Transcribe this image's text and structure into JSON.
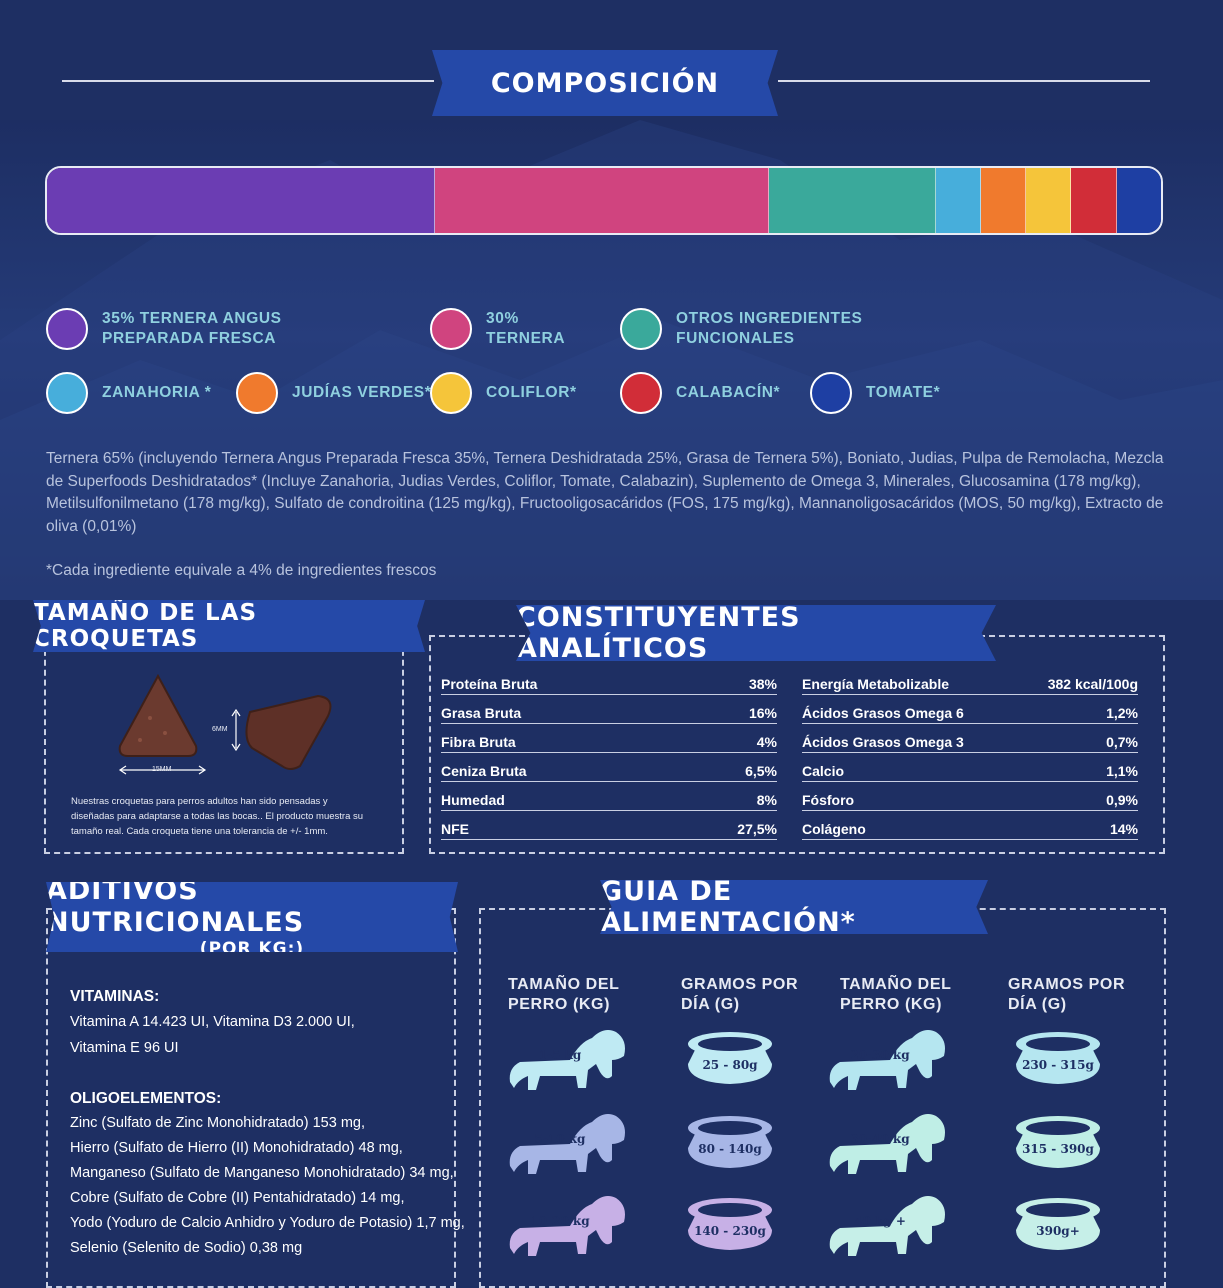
{
  "composicion": {
    "title": "COMPOSICIÓN",
    "segments": [
      {
        "color": "#6b3db3",
        "share": 35
      },
      {
        "color": "#d0447f",
        "share": 30
      },
      {
        "color": "#3aa99b",
        "share": 15
      },
      {
        "color": "#47aedb",
        "share": 4
      },
      {
        "color": "#f07a2d",
        "share": 4
      },
      {
        "color": "#f5c53a",
        "share": 4
      },
      {
        "color": "#d12d38",
        "share": 4
      },
      {
        "color": "#1e3fa3",
        "share": 4
      }
    ],
    "legend": [
      {
        "label": "35% TERNERA ANGUS\nPREPARADA FRESCA",
        "color": "#6b3db3"
      },
      {
        "label": "30%\nTERNERA",
        "color": "#d0447f"
      },
      {
        "label": "OTROS INGREDIENTES\nFUNCIONALES",
        "color": "#3aa99b"
      },
      {
        "label": "ZANAHORIA *",
        "color": "#47aedb"
      },
      {
        "label": "JUDÍAS VERDES*",
        "color": "#f07a2d"
      },
      {
        "label": "COLIFLOR*",
        "color": "#f5c53a"
      },
      {
        "label": "CALABACÍN*",
        "color": "#d12d38"
      },
      {
        "label": "TOMATE*",
        "color": "#1e3fa3"
      }
    ],
    "ingredients": "Ternera 65% (incluyendo Ternera Angus Preparada Fresca 35%, Ternera Deshidratada 25%, Grasa de Ternera 5%), Boniato, Judias, Pulpa de Remolacha, Mezcla de Superfoods Deshidratados* (Incluye Zanahoria, Judias Verdes, Coliflor, Tomate, Calabazin), Suplemento de Omega 3, Minerales, Glucosamina (178 mg/kg), Metilsulfonilmetano (178 mg/kg), Sulfato de condroitina (125 mg/kg), Fructooligosacáridos (FOS, 175 mg/kg), Mannanoligosacáridos (MOS, 50 mg/kg), Extracto de oliva (0,01%)",
    "footnote": "*Cada ingrediente equivale a 4% de ingredientes frescos"
  },
  "croquetas": {
    "title": "TAMAÑO DE LAS CROQUETAS",
    "width_label": "15MM",
    "height_label": "6MM",
    "note": "Nuestras croquetas para perros adultos han sido pensadas  y diseñadas para adaptarse a todas las bocas.. El producto muestra su tamaño real. Cada croqueta tiene una tolerancia de +/- 1mm."
  },
  "analiticos": {
    "title": "CONSTITUYENTES ANALÍTICOS",
    "left": [
      {
        "name": "Proteína Bruta",
        "value": "38%"
      },
      {
        "name": "Grasa Bruta",
        "value": "16%"
      },
      {
        "name": "Fibra Bruta",
        "value": "4%"
      },
      {
        "name": "Ceniza Bruta",
        "value": "6,5%"
      },
      {
        "name": "Humedad",
        "value": "8%"
      },
      {
        "name": "NFE",
        "value": "27,5%"
      }
    ],
    "right": [
      {
        "name": "Energía Metabolizable",
        "value": "382 kcal/100g"
      },
      {
        "name": "Ácidos Grasos Omega 6",
        "value": "1,2%"
      },
      {
        "name": "Ácidos Grasos Omega 3",
        "value": "0,7%"
      },
      {
        "name": "Calcio",
        "value": "1,1%"
      },
      {
        "name": "Fósforo",
        "value": "0,9%"
      },
      {
        "name": "Colágeno",
        "value": "14%"
      }
    ]
  },
  "aditivos": {
    "title": "ADITIVOS NUTRICIONALES",
    "subtitle": "(POR KG:)",
    "vitaminas_title": "VITAMINAS:",
    "vitaminas": [
      "Vitamina A 14.423 UI, Vitamina D3 2.000 UI,",
      "Vitamina E 96 UI"
    ],
    "oligo_title": "OLIGOELEMENTOS:",
    "oligo": [
      "Zinc (Sulfato de Zinc Monohidratado) 153 mg,",
      "Hierro (Sulfato de Hierro (II) Monohidratado) 48 mg,",
      "Manganeso (Sulfato de Manganeso Monohidratado) 34 mg,",
      "Cobre (Sulfato de Cobre (II) Pentahidratado) 14 mg,",
      "Yodo (Yoduro de Calcio Anhidro y Yoduro de Potasio) 1,7 mg,",
      "Selenio (Selenito de Sodio) 0,38 mg"
    ]
  },
  "guia": {
    "title": "GUÍA DE ALIMENTACIÓN*",
    "headers": [
      "TAMAÑO DEL\nPERRO (KG)",
      "GRAMOS POR\nDÍA (G)",
      "TAMAÑO DEL\nPERRO (KG)",
      "GRAMOS POR\nDÍA (G)"
    ],
    "left": [
      {
        "dog": "1-5 kg",
        "grams": "25 - 80g",
        "color": "#bfeaf3"
      },
      {
        "dog": "5-10 kg",
        "grams": "80 - 140g",
        "color": "#a7b6e6"
      },
      {
        "dog": "10-20 kg",
        "grams": "140 - 230g",
        "color": "#c7b0e6"
      }
    ],
    "right": [
      {
        "dog": "20-30 kg",
        "grams": "230 - 315g",
        "color": "#b5e6f0"
      },
      {
        "dog": "30-40 kg",
        "grams": "315 - 390g",
        "color": "#bfeee6"
      },
      {
        "dog": "40 kg +",
        "grams": "390g+",
        "color": "#c6efe8"
      }
    ]
  }
}
